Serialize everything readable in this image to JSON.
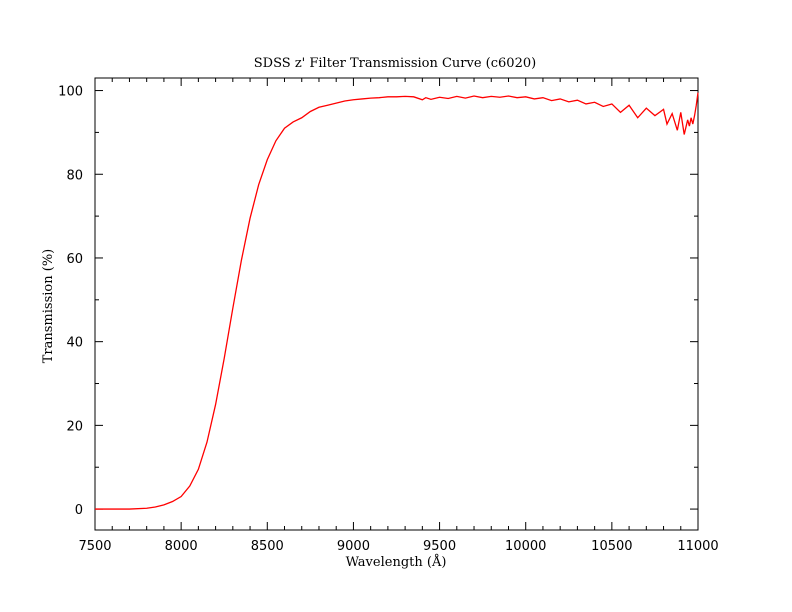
{
  "chart_data": {
    "type": "line",
    "title": "SDSS z' Filter Transmission Curve (c6020)",
    "xlabel": "Wavelength (Å)",
    "ylabel": "Transmission (%)",
    "xlim": [
      7500,
      11000
    ],
    "ylim": [
      -5,
      103
    ],
    "x_ticks": [
      7500,
      8000,
      8500,
      9000,
      9500,
      10000,
      10500,
      11000
    ],
    "y_ticks": [
      0,
      20,
      40,
      60,
      80,
      100
    ],
    "grid": false,
    "legend": "none",
    "line_color": "#ff0000",
    "series": [
      {
        "x": [
          7500,
          7600,
          7700,
          7800,
          7850,
          7900,
          7950,
          8000,
          8050,
          8100,
          8150,
          8200,
          8250,
          8300,
          8350,
          8400,
          8450,
          8500,
          8550,
          8600,
          8650,
          8700,
          8750,
          8800,
          8850,
          8900,
          8950,
          9000,
          9050,
          9100,
          9150,
          9200,
          9250,
          9300,
          9350,
          9400,
          9420,
          9450,
          9500,
          9550,
          9600,
          9650,
          9700,
          9750,
          9800,
          9850,
          9900,
          9950,
          10000,
          10050,
          10100,
          10150,
          10200,
          10250,
          10300,
          10350,
          10400,
          10450,
          10500,
          10550,
          10600,
          10650,
          10700,
          10750,
          10800,
          10820,
          10850,
          10880,
          10900,
          10920,
          10940,
          10950,
          10960,
          10970,
          10980,
          10990,
          11000
        ],
        "y": [
          0.0,
          0.0,
          0.0,
          0.2,
          0.5,
          1.0,
          1.8,
          3.0,
          5.5,
          9.5,
          16.0,
          25.0,
          36.0,
          48.0,
          59.5,
          69.5,
          77.5,
          83.5,
          88.0,
          91.0,
          92.5,
          93.5,
          95.0,
          96.0,
          96.5,
          97.0,
          97.5,
          97.8,
          98.0,
          98.2,
          98.3,
          98.5,
          98.5,
          98.6,
          98.5,
          97.8,
          98.3,
          97.9,
          98.4,
          98.1,
          98.6,
          98.2,
          98.7,
          98.3,
          98.6,
          98.4,
          98.7,
          98.3,
          98.5,
          98.0,
          98.3,
          97.6,
          98.0,
          97.3,
          97.7,
          96.8,
          97.2,
          96.2,
          96.8,
          94.8,
          96.5,
          93.5,
          95.8,
          94.0,
          95.5,
          92.0,
          94.5,
          90.5,
          94.8,
          89.5,
          93.0,
          91.5,
          93.5,
          92.0,
          94.0,
          96.5,
          99.5
        ]
      }
    ]
  }
}
